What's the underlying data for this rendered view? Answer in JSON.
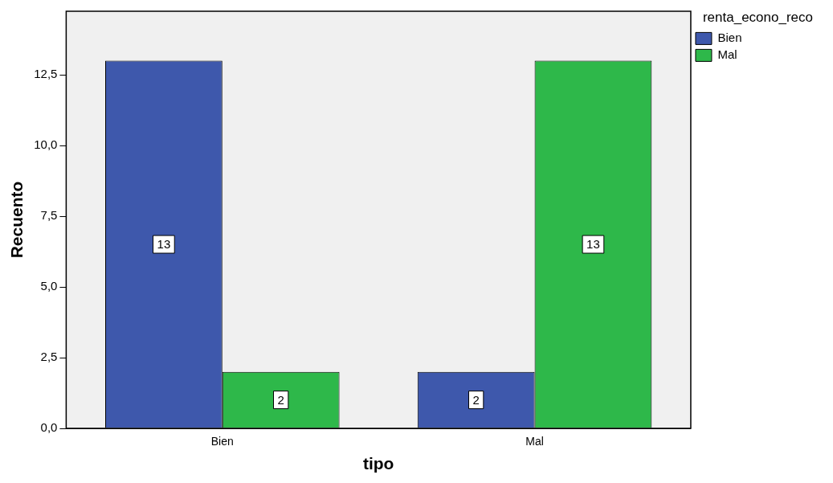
{
  "chart_data": {
    "type": "bar",
    "xlabel": "tipo",
    "ylabel": "Recuento",
    "legend_title": "renta_econo_reco",
    "legend": "top right",
    "data_labels": true,
    "grid": false,
    "categories": [
      "Bien",
      "Mal"
    ],
    "series": [
      {
        "name": "Bien",
        "color": "#3e58ac",
        "values": [
          13,
          2
        ]
      },
      {
        "name": "Mal",
        "color": "#2eb84a",
        "values": [
          2,
          13
        ]
      }
    ],
    "ylim": [
      0,
      14.75
    ],
    "yticks": [
      {
        "value": 0,
        "label": "0,0"
      },
      {
        "value": 2.5,
        "label": "2,5"
      },
      {
        "value": 5,
        "label": "5,0"
      },
      {
        "value": 7.5,
        "label": "7,5"
      },
      {
        "value": 10,
        "label": "10,0"
      },
      {
        "value": 12.5,
        "label": "12,5"
      }
    ]
  }
}
